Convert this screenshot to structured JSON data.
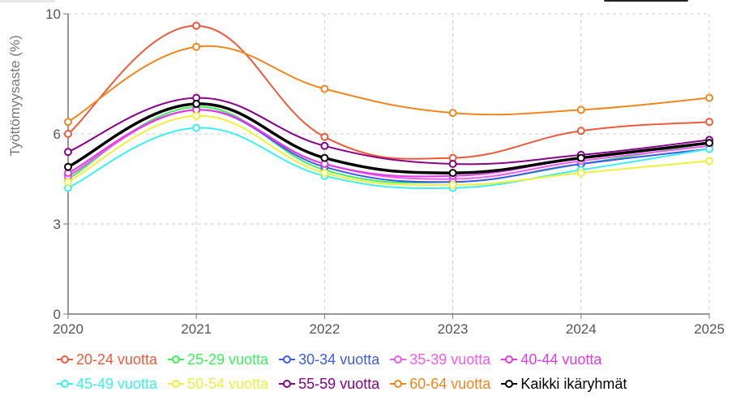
{
  "chart_data": {
    "type": "line",
    "title": "",
    "xlabel": "",
    "ylabel": "Työttömyysaste (%)",
    "x": [
      "2020",
      "2021",
      "2022",
      "2023",
      "2024",
      "2025"
    ],
    "ylim": [
      0,
      10
    ],
    "yticks": [
      "0",
      "3",
      "6",
      "10"
    ],
    "ytick_values": [
      0,
      3,
      6,
      10
    ],
    "grid": true,
    "legend_position": "bottom",
    "series": [
      {
        "name": "20-24 vuotta",
        "color": "#f05a3c",
        "values": [
          6.0,
          9.6,
          5.9,
          5.2,
          6.1,
          6.4
        ]
      },
      {
        "name": "25-29 vuotta",
        "color": "#3cf05a",
        "values": [
          4.5,
          6.9,
          4.8,
          4.4,
          5.0,
          5.7
        ]
      },
      {
        "name": "30-34 vuotta",
        "color": "#3c5af0",
        "values": [
          4.6,
          6.8,
          4.9,
          4.4,
          5.0,
          5.5
        ]
      },
      {
        "name": "35-39 vuotta",
        "color": "#f05af0",
        "values": [
          4.6,
          6.8,
          5.0,
          4.5,
          5.1,
          5.6
        ]
      },
      {
        "name": "40-44 vuotta",
        "color": "#e13ce1",
        "values": [
          4.7,
          6.8,
          5.0,
          4.6,
          5.2,
          5.7
        ]
      },
      {
        "name": "45-49 vuotta",
        "color": "#3cf0f0",
        "values": [
          4.2,
          6.2,
          4.6,
          4.2,
          4.8,
          5.5
        ]
      },
      {
        "name": "50-54 vuotta",
        "color": "#f0f03c",
        "values": [
          4.4,
          6.6,
          4.7,
          4.3,
          4.7,
          5.1
        ]
      },
      {
        "name": "55-59 vuotta",
        "color": "#870087",
        "values": [
          5.4,
          7.2,
          5.6,
          5.0,
          5.3,
          5.8
        ]
      },
      {
        "name": "60-64 vuotta",
        "color": "#f0871e",
        "values": [
          6.4,
          8.9,
          7.5,
          6.7,
          6.8,
          7.2
        ]
      },
      {
        "name": "Kaikki ikäryhmät",
        "color": "#000000",
        "values": [
          4.9,
          7.0,
          5.2,
          4.7,
          5.2,
          5.7
        ]
      }
    ]
  }
}
